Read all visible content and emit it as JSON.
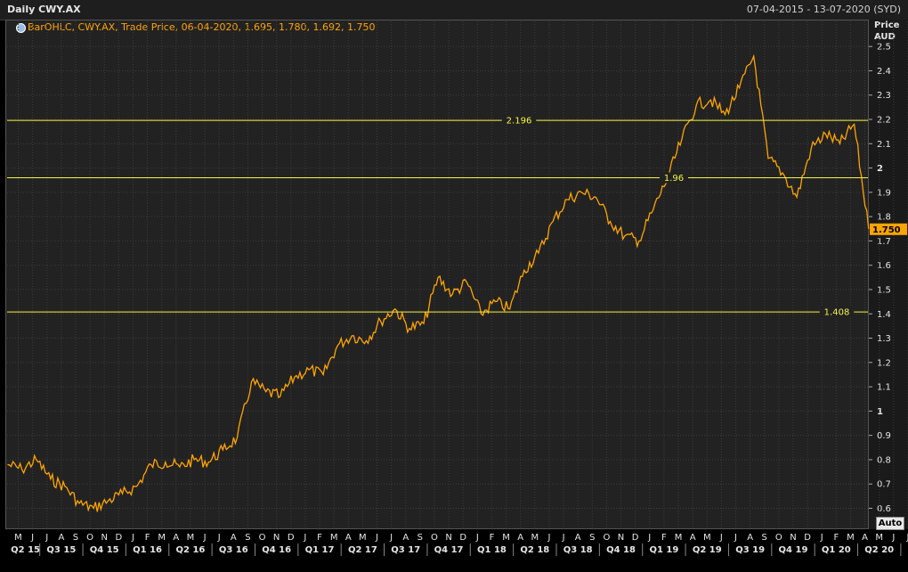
{
  "header": {
    "title": "Daily CWY.AX",
    "date_range": "07-04-2015 - 13-07-2020 (SYD)"
  },
  "legend": {
    "text": "BarOHLC, CWY.AX, Trade Price, 06-04-2020, 1.695, 1.780, 1.692, 1.750"
  },
  "axis": {
    "price_label": "Price",
    "currency_label": "AUD",
    "auto_button": "Auto"
  },
  "colors": {
    "series": "#ffa500",
    "hlines": "#f5f542",
    "grid": "#3c3c3c",
    "background": "#222222"
  },
  "chart_data": {
    "type": "line",
    "title": "Daily CWY.AX",
    "ylabel": "Price AUD",
    "ylim": [
      0.55,
      2.58
    ],
    "grid": true,
    "y_ticks": [
      "2.5",
      "2.4",
      "2.3",
      "2.2",
      "2.1",
      "2",
      "1.9",
      "1.8",
      "1.7",
      "1.6",
      "1.5",
      "1.4",
      "1.3",
      "1.2",
      "1.1",
      "1",
      "0.9",
      "0.8",
      "0.7",
      "0.6"
    ],
    "month_labels": [
      "M",
      "J",
      "J",
      "A",
      "S",
      "O",
      "N",
      "D",
      "J",
      "F",
      "M",
      "A",
      "M",
      "J",
      "J",
      "A",
      "S",
      "O",
      "N",
      "D",
      "J",
      "F",
      "M",
      "A",
      "M",
      "J",
      "J",
      "A",
      "S",
      "O",
      "N",
      "D",
      "J",
      "F",
      "M",
      "A",
      "M",
      "J",
      "J",
      "A",
      "S",
      "O",
      "N",
      "D",
      "J",
      "F",
      "M",
      "A",
      "M",
      "J",
      "J",
      "A",
      "S",
      "O",
      "N",
      "D",
      "J",
      "F",
      "M",
      "A",
      "M",
      "J",
      "J"
    ],
    "quarter_labels": [
      "Q2 15",
      "Q3 15",
      "Q4 15",
      "Q1 16",
      "Q2 16",
      "Q3 16",
      "Q4 16",
      "Q1 17",
      "Q2 17",
      "Q3 17",
      "Q4 17",
      "Q1 18",
      "Q2 18",
      "Q3 18",
      "Q4 18",
      "Q1 19",
      "Q2 19",
      "Q3 19",
      "Q4 19",
      "Q1 20",
      "Q2 20"
    ],
    "current_price": "1.750",
    "horizontal_lines": [
      {
        "value": 2.196,
        "label": "2.196"
      },
      {
        "value": 1.96,
        "label": "1.96"
      },
      {
        "value": 1.408,
        "label": "1.408"
      }
    ],
    "series": [
      {
        "x": [
          "2015-04",
          "2015-05",
          "2015-06",
          "2015-07",
          "2015-08",
          "2015-09",
          "2015-10",
          "2015-11",
          "2015-12",
          "2016-01",
          "2016-02",
          "2016-03",
          "2016-04",
          "2016-05",
          "2016-06",
          "2016-07",
          "2016-08",
          "2016-09",
          "2016-10",
          "2016-11",
          "2016-12",
          "2017-01",
          "2017-02",
          "2017-03",
          "2017-04",
          "2017-05",
          "2017-06",
          "2017-07",
          "2017-08",
          "2017-09",
          "2017-10",
          "2017-11",
          "2017-12",
          "2018-01",
          "2018-02",
          "2018-03",
          "2018-04",
          "2018-05",
          "2018-06",
          "2018-07",
          "2018-08",
          "2018-09",
          "2018-10",
          "2018-11",
          "2018-12",
          "2019-01",
          "2019-02",
          "2019-03",
          "2019-04",
          "2019-05",
          "2019-06",
          "2019-07",
          "2019-08",
          "2019-09",
          "2019-10",
          "2019-11",
          "2019-12",
          "2020-01",
          "2020-02",
          "2020-03",
          "2020-04"
        ],
        "values": [
          0.78,
          0.76,
          0.8,
          0.72,
          0.69,
          0.62,
          0.6,
          0.63,
          0.66,
          0.69,
          0.78,
          0.79,
          0.77,
          0.8,
          0.79,
          0.84,
          0.89,
          1.12,
          1.08,
          1.06,
          1.14,
          1.17,
          1.15,
          1.27,
          1.31,
          1.29,
          1.37,
          1.42,
          1.34,
          1.36,
          1.55,
          1.48,
          1.53,
          1.4,
          1.45,
          1.42,
          1.58,
          1.65,
          1.78,
          1.87,
          1.9,
          1.88,
          1.78,
          1.72,
          1.7,
          1.83,
          1.96,
          2.12,
          2.26,
          2.28,
          2.22,
          2.33,
          2.46,
          2.04,
          1.98,
          1.88,
          2.08,
          2.14,
          2.1,
          2.18,
          1.75
        ]
      }
    ]
  }
}
